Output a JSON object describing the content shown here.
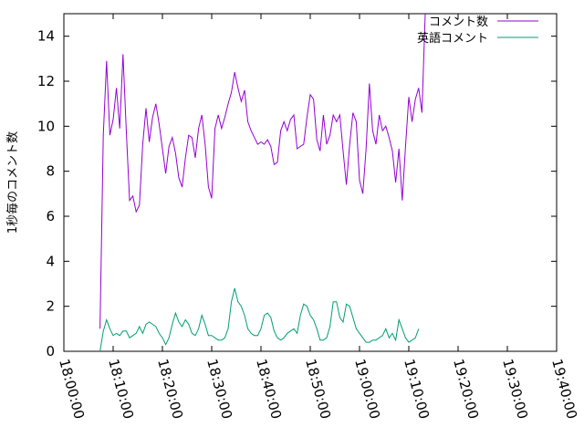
{
  "chart_data": {
    "type": "line",
    "xlabel": "",
    "ylabel": "1秒毎のコメント数",
    "ylim": [
      0,
      15
    ],
    "xlim": [
      "18:00:00",
      "19:40:00"
    ],
    "x_ticks": [
      "18:00:00",
      "18:10:00",
      "18:20:00",
      "18:30:00",
      "18:40:00",
      "18:50:00",
      "19:00:00",
      "19:10:00",
      "19:20:00",
      "19:30:00",
      "19:40:00"
    ],
    "y_ticks": [
      0,
      2,
      4,
      6,
      8,
      10,
      12,
      14
    ],
    "grid": false,
    "legend_position": "top-right",
    "series": [
      {
        "name": "コメント数",
        "color": "#9400d3",
        "points": [
          [
            "18:07:20",
            1.0
          ],
          [
            "18:08:00",
            9.6
          ],
          [
            "18:08:40",
            12.9
          ],
          [
            "18:09:20",
            9.6
          ],
          [
            "18:10:00",
            10.3
          ],
          [
            "18:10:40",
            11.7
          ],
          [
            "18:11:20",
            9.9
          ],
          [
            "18:12:00",
            13.2
          ],
          [
            "18:12:40",
            9.8
          ],
          [
            "18:13:20",
            6.7
          ],
          [
            "18:14:00",
            6.9
          ],
          [
            "18:14:40",
            6.2
          ],
          [
            "18:15:20",
            6.5
          ],
          [
            "18:16:00",
            9.2
          ],
          [
            "18:16:40",
            10.8
          ],
          [
            "18:17:20",
            9.3
          ],
          [
            "18:18:00",
            10.4
          ],
          [
            "18:18:40",
            11.0
          ],
          [
            "18:19:20",
            10.1
          ],
          [
            "18:20:00",
            9.0
          ],
          [
            "18:20:40",
            7.9
          ],
          [
            "18:21:20",
            9.1
          ],
          [
            "18:22:00",
            9.5
          ],
          [
            "18:22:40",
            8.8
          ],
          [
            "18:23:20",
            7.7
          ],
          [
            "18:24:00",
            7.3
          ],
          [
            "18:24:40",
            8.6
          ],
          [
            "18:25:20",
            9.6
          ],
          [
            "18:26:00",
            9.5
          ],
          [
            "18:26:40",
            8.6
          ],
          [
            "18:27:20",
            9.9
          ],
          [
            "18:28:00",
            10.5
          ],
          [
            "18:28:40",
            9.2
          ],
          [
            "18:29:20",
            7.3
          ],
          [
            "18:30:00",
            6.8
          ],
          [
            "18:30:40",
            9.9
          ],
          [
            "18:31:20",
            10.5
          ],
          [
            "18:32:00",
            9.9
          ],
          [
            "18:32:40",
            10.4
          ],
          [
            "18:33:20",
            11.0
          ],
          [
            "18:34:00",
            11.5
          ],
          [
            "18:34:40",
            12.4
          ],
          [
            "18:35:20",
            11.7
          ],
          [
            "18:36:00",
            11.1
          ],
          [
            "18:36:40",
            11.6
          ],
          [
            "18:37:20",
            10.2
          ],
          [
            "18:38:00",
            9.8
          ],
          [
            "18:38:40",
            9.5
          ],
          [
            "18:39:20",
            9.2
          ],
          [
            "18:40:00",
            9.3
          ],
          [
            "18:40:40",
            9.2
          ],
          [
            "18:41:20",
            9.4
          ],
          [
            "18:42:00",
            9.1
          ],
          [
            "18:42:40",
            8.3
          ],
          [
            "18:43:20",
            8.4
          ],
          [
            "18:44:00",
            9.8
          ],
          [
            "18:44:40",
            10.2
          ],
          [
            "18:45:20",
            9.8
          ],
          [
            "18:46:00",
            10.3
          ],
          [
            "18:46:40",
            10.5
          ],
          [
            "18:47:20",
            9.0
          ],
          [
            "18:48:00",
            9.1
          ],
          [
            "18:48:40",
            9.2
          ],
          [
            "18:49:20",
            10.4
          ],
          [
            "18:50:00",
            11.4
          ],
          [
            "18:50:40",
            11.2
          ],
          [
            "18:51:20",
            9.4
          ],
          [
            "18:52:00",
            8.9
          ],
          [
            "18:52:40",
            10.5
          ],
          [
            "18:53:20",
            9.2
          ],
          [
            "18:54:00",
            9.6
          ],
          [
            "18:54:40",
            10.5
          ],
          [
            "18:55:20",
            10.2
          ],
          [
            "18:56:00",
            10.5
          ],
          [
            "18:56:40",
            8.9
          ],
          [
            "18:57:20",
            7.4
          ],
          [
            "18:58:00",
            9.2
          ],
          [
            "18:58:40",
            10.6
          ],
          [
            "18:59:20",
            10.2
          ],
          [
            "19:00:00",
            7.6
          ],
          [
            "19:00:40",
            7.0
          ],
          [
            "19:01:20",
            9.0
          ],
          [
            "19:02:00",
            11.9
          ],
          [
            "19:02:40",
            9.8
          ],
          [
            "19:03:20",
            9.2
          ],
          [
            "19:04:00",
            10.5
          ],
          [
            "19:04:40",
            9.8
          ],
          [
            "19:05:20",
            10.0
          ],
          [
            "19:06:00",
            9.5
          ],
          [
            "19:06:40",
            8.9
          ],
          [
            "19:07:20",
            7.5
          ],
          [
            "19:08:00",
            9.0
          ],
          [
            "19:08:40",
            6.7
          ],
          [
            "19:09:20",
            9.1
          ],
          [
            "19:10:00",
            11.3
          ],
          [
            "19:10:40",
            10.2
          ],
          [
            "19:11:20",
            11.2
          ],
          [
            "19:12:00",
            11.7
          ],
          [
            "19:12:40",
            10.6
          ],
          [
            "19:13:20",
            15.0
          ]
        ]
      },
      {
        "name": "英語コメント",
        "color": "#009e73",
        "points": [
          [
            "18:07:20",
            0.0
          ],
          [
            "18:08:00",
            0.9
          ],
          [
            "18:08:40",
            1.4
          ],
          [
            "18:09:20",
            1.0
          ],
          [
            "18:10:00",
            0.7
          ],
          [
            "18:10:40",
            0.8
          ],
          [
            "18:11:20",
            0.7
          ],
          [
            "18:12:00",
            0.9
          ],
          [
            "18:12:40",
            0.9
          ],
          [
            "18:13:20",
            0.6
          ],
          [
            "18:14:00",
            0.7
          ],
          [
            "18:14:40",
            0.8
          ],
          [
            "18:15:20",
            1.1
          ],
          [
            "18:16:00",
            0.8
          ],
          [
            "18:16:40",
            1.2
          ],
          [
            "18:17:20",
            1.3
          ],
          [
            "18:18:00",
            1.2
          ],
          [
            "18:18:40",
            1.1
          ],
          [
            "18:19:20",
            0.8
          ],
          [
            "18:20:00",
            0.6
          ],
          [
            "18:20:40",
            0.3
          ],
          [
            "18:21:20",
            0.6
          ],
          [
            "18:22:00",
            1.2
          ],
          [
            "18:22:40",
            1.7
          ],
          [
            "18:23:20",
            1.3
          ],
          [
            "18:24:00",
            1.1
          ],
          [
            "18:24:40",
            1.4
          ],
          [
            "18:25:20",
            1.2
          ],
          [
            "18:26:00",
            0.8
          ],
          [
            "18:26:40",
            0.7
          ],
          [
            "18:27:20",
            1.0
          ],
          [
            "18:28:00",
            1.6
          ],
          [
            "18:28:40",
            1.2
          ],
          [
            "18:29:20",
            0.7
          ],
          [
            "18:30:00",
            0.7
          ],
          [
            "18:30:40",
            0.6
          ],
          [
            "18:31:20",
            0.5
          ],
          [
            "18:32:00",
            0.5
          ],
          [
            "18:32:40",
            0.6
          ],
          [
            "18:33:20",
            1.0
          ],
          [
            "18:34:00",
            2.2
          ],
          [
            "18:34:40",
            2.8
          ],
          [
            "18:35:20",
            2.2
          ],
          [
            "18:36:00",
            2.0
          ],
          [
            "18:36:40",
            1.6
          ],
          [
            "18:37:20",
            1.0
          ],
          [
            "18:38:00",
            0.8
          ],
          [
            "18:38:40",
            0.7
          ],
          [
            "18:39:20",
            0.7
          ],
          [
            "18:40:00",
            1.0
          ],
          [
            "18:40:40",
            1.6
          ],
          [
            "18:41:20",
            1.7
          ],
          [
            "18:42:00",
            1.5
          ],
          [
            "18:42:40",
            0.9
          ],
          [
            "18:43:20",
            0.6
          ],
          [
            "18:44:00",
            0.5
          ],
          [
            "18:44:40",
            0.6
          ],
          [
            "18:45:20",
            0.8
          ],
          [
            "18:46:00",
            0.9
          ],
          [
            "18:46:40",
            1.0
          ],
          [
            "18:47:20",
            0.8
          ],
          [
            "18:48:00",
            1.6
          ],
          [
            "18:48:40",
            2.1
          ],
          [
            "18:49:20",
            2.0
          ],
          [
            "18:50:00",
            1.6
          ],
          [
            "18:50:40",
            1.4
          ],
          [
            "18:51:20",
            1.0
          ],
          [
            "18:52:00",
            0.5
          ],
          [
            "18:52:40",
            0.5
          ],
          [
            "18:53:20",
            0.6
          ],
          [
            "18:54:00",
            1.1
          ],
          [
            "18:54:40",
            2.2
          ],
          [
            "18:55:20",
            2.2
          ],
          [
            "18:56:00",
            1.5
          ],
          [
            "18:56:40",
            1.3
          ],
          [
            "18:57:20",
            2.1
          ],
          [
            "18:58:00",
            2.0
          ],
          [
            "18:58:40",
            1.5
          ],
          [
            "18:59:20",
            1.0
          ],
          [
            "19:00:00",
            0.8
          ],
          [
            "19:00:40",
            0.6
          ],
          [
            "19:01:20",
            0.4
          ],
          [
            "19:02:00",
            0.4
          ],
          [
            "19:02:40",
            0.5
          ],
          [
            "19:03:20",
            0.5
          ],
          [
            "19:04:00",
            0.6
          ],
          [
            "19:04:40",
            0.7
          ],
          [
            "19:05:20",
            1.0
          ],
          [
            "19:06:00",
            0.6
          ],
          [
            "19:06:40",
            0.8
          ],
          [
            "19:07:20",
            0.5
          ],
          [
            "19:08:00",
            1.4
          ],
          [
            "19:08:40",
            1.0
          ],
          [
            "19:09:20",
            0.6
          ],
          [
            "19:10:00",
            0.4
          ],
          [
            "19:10:40",
            0.5
          ],
          [
            "19:11:20",
            0.6
          ],
          [
            "19:12:00",
            1.0
          ]
        ]
      }
    ]
  }
}
